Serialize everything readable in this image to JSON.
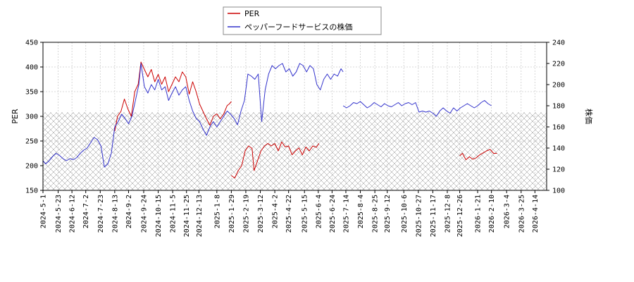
{
  "chart_data": {
    "type": "line",
    "title": "",
    "legend": {
      "placement": "top-center",
      "entries": [
        {
          "label": "PER",
          "color": "#cc0000"
        },
        {
          "label": "ペッパーフードサービスの株価",
          "color": "#3333cc"
        }
      ]
    },
    "left_axis": {
      "label": "PER",
      "range": [
        150,
        450
      ],
      "ticks": [
        150,
        200,
        250,
        300,
        350,
        400,
        450
      ]
    },
    "right_axis": {
      "label": "株価",
      "range": [
        100,
        240
      ],
      "ticks": [
        100,
        120,
        140,
        160,
        180,
        200,
        220,
        240
      ]
    },
    "x_axis": {
      "range": [
        "2024-05-01",
        "2026-05-01"
      ],
      "ticks": [
        "2024-5-1",
        "2024-5-23",
        "2024-6-12",
        "2024-7-2",
        "2024-7-23",
        "2024-8-13",
        "2024-9-2",
        "2024-9-24",
        "2024-10-15",
        "2024-11-5",
        "2024-11-25",
        "2024-12-13",
        "2025-1-8",
        "2025-1-29",
        "2025-2-19",
        "2025-3-12",
        "2025-4-2",
        "2025-4-22",
        "2025-5-15",
        "2025-6-4",
        "2025-6-24",
        "2025-7-14",
        "2025-8-4",
        "2025-8-25",
        "2025-9-12",
        "2025-10-6",
        "2025-10-27",
        "2025-11-17",
        "2025-12-8",
        "2025-12-26",
        "2026-1-21",
        "2026-2-10",
        "2026-3-4",
        "2026-3-25",
        "2026-4-14"
      ]
    },
    "grid": true,
    "hatched_band": {
      "axis": "left",
      "from": 150,
      "to": 308
    },
    "series": [
      {
        "name": "PER",
        "axis": "left",
        "color": "#cc0000",
        "segments": [
          [
            [
              "2024-08-13",
              270
            ],
            [
              "2024-08-17",
              300
            ],
            [
              "2024-08-22",
              310
            ],
            [
              "2024-08-27",
              335
            ],
            [
              "2024-09-01",
              315
            ],
            [
              "2024-09-06",
              300
            ],
            [
              "2024-09-11",
              350
            ],
            [
              "2024-09-16",
              365
            ],
            [
              "2024-09-20",
              410
            ],
            [
              "2024-09-25",
              395
            ],
            [
              "2024-09-30",
              380
            ],
            [
              "2024-10-05",
              395
            ],
            [
              "2024-10-10",
              370
            ],
            [
              "2024-10-15",
              385
            ],
            [
              "2024-10-20",
              365
            ],
            [
              "2024-10-25",
              380
            ],
            [
              "2024-10-30",
              350
            ],
            [
              "2024-11-04",
              365
            ],
            [
              "2024-11-09",
              380
            ],
            [
              "2024-11-14",
              370
            ],
            [
              "2024-11-19",
              390
            ],
            [
              "2024-11-24",
              380
            ],
            [
              "2024-11-29",
              345
            ],
            [
              "2024-12-04",
              370
            ],
            [
              "2024-12-09",
              350
            ],
            [
              "2024-12-14",
              325
            ],
            [
              "2024-12-19",
              310
            ],
            [
              "2024-12-24",
              295
            ],
            [
              "2024-12-29",
              282
            ],
            [
              "2025-01-03",
              300
            ],
            [
              "2025-01-08",
              305
            ],
            [
              "2025-01-13",
              295
            ],
            [
              "2025-01-18",
              305
            ],
            [
              "2025-01-23",
              322
            ],
            [
              "2025-01-26",
              325
            ],
            [
              "2025-01-29",
              330
            ]
          ],
          [
            [
              "2025-01-29",
              180
            ],
            [
              "2025-02-03",
              175
            ],
            [
              "2025-02-08",
              190
            ],
            [
              "2025-02-13",
              200
            ],
            [
              "2025-02-18",
              230
            ],
            [
              "2025-02-23",
              240
            ],
            [
              "2025-02-28",
              235
            ],
            [
              "2025-03-03",
              190
            ],
            [
              "2025-03-08",
              210
            ],
            [
              "2025-03-13",
              230
            ],
            [
              "2025-03-18",
              240
            ],
            [
              "2025-03-23",
              245
            ],
            [
              "2025-03-28",
              240
            ],
            [
              "2025-04-02",
              245
            ],
            [
              "2025-04-07",
              230
            ],
            [
              "2025-04-12",
              248
            ],
            [
              "2025-04-17",
              238
            ],
            [
              "2025-04-22",
              240
            ],
            [
              "2025-04-27",
              222
            ],
            [
              "2025-05-02",
              230
            ],
            [
              "2025-05-07",
              236
            ],
            [
              "2025-05-12",
              222
            ],
            [
              "2025-05-17",
              238
            ],
            [
              "2025-05-22",
              230
            ],
            [
              "2025-05-27",
              240
            ],
            [
              "2025-06-01",
              237
            ],
            [
              "2025-06-05",
              245
            ]
          ],
          [
            [
              "2025-12-26",
              220
            ],
            [
              "2025-12-30",
              225
            ],
            [
              "2026-01-04",
              212
            ],
            [
              "2026-01-09",
              218
            ],
            [
              "2026-01-14",
              213
            ],
            [
              "2026-01-19",
              216
            ],
            [
              "2026-01-24",
              222
            ],
            [
              "2026-01-29",
              226
            ],
            [
              "2026-02-03",
              230
            ],
            [
              "2026-02-08",
              233
            ],
            [
              "2026-02-13",
              225
            ],
            [
              "2026-02-18",
              225
            ]
          ]
        ]
      },
      {
        "name": "ペッパーフードサービスの株価",
        "axis": "right",
        "color": "#3333cc",
        "segments": [
          [
            [
              "2024-05-01",
              128
            ],
            [
              "2024-05-05",
              125
            ],
            [
              "2024-05-10",
              128
            ],
            [
              "2024-05-15",
              132
            ],
            [
              "2024-05-20",
              135
            ],
            [
              "2024-05-25",
              133
            ],
            [
              "2024-05-30",
              130
            ],
            [
              "2024-06-04",
              128
            ],
            [
              "2024-06-09",
              130
            ],
            [
              "2024-06-14",
              129
            ],
            [
              "2024-06-19",
              131
            ],
            [
              "2024-06-24",
              135
            ],
            [
              "2024-06-29",
              138
            ],
            [
              "2024-07-04",
              140
            ],
            [
              "2024-07-09",
              145
            ],
            [
              "2024-07-14",
              150
            ],
            [
              "2024-07-19",
              148
            ],
            [
              "2024-07-24",
              142
            ],
            [
              "2024-07-29",
              122
            ],
            [
              "2024-08-03",
              125
            ],
            [
              "2024-08-08",
              135
            ],
            [
              "2024-08-13",
              160
            ],
            [
              "2024-08-18",
              165
            ],
            [
              "2024-08-23",
              172
            ],
            [
              "2024-08-28",
              168
            ],
            [
              "2024-09-02",
              163
            ],
            [
              "2024-09-07",
              170
            ],
            [
              "2024-09-12",
              185
            ],
            [
              "2024-09-17",
              200
            ],
            [
              "2024-09-20",
              220
            ],
            [
              "2024-09-25",
              198
            ],
            [
              "2024-09-30",
              192
            ],
            [
              "2024-10-05",
              200
            ],
            [
              "2024-10-10",
              195
            ],
            [
              "2024-10-15",
              205
            ],
            [
              "2024-10-20",
              195
            ],
            [
              "2024-10-25",
              198
            ],
            [
              "2024-10-30",
              185
            ],
            [
              "2024-11-04",
              192
            ],
            [
              "2024-11-09",
              198
            ],
            [
              "2024-11-14",
              190
            ],
            [
              "2024-11-19",
              195
            ],
            [
              "2024-11-24",
              198
            ],
            [
              "2024-11-29",
              185
            ],
            [
              "2024-12-04",
              175
            ],
            [
              "2024-12-09",
              168
            ],
            [
              "2024-12-14",
              165
            ],
            [
              "2024-12-19",
              158
            ],
            [
              "2024-12-24",
              152
            ],
            [
              "2024-12-29",
              160
            ],
            [
              "2025-01-03",
              165
            ],
            [
              "2025-01-08",
              160
            ],
            [
              "2025-01-13",
              165
            ],
            [
              "2025-01-18",
              170
            ],
            [
              "2025-01-23",
              175
            ],
            [
              "2025-01-28",
              172
            ],
            [
              "2025-02-02",
              168
            ],
            [
              "2025-02-07",
              162
            ],
            [
              "2025-02-12",
              175
            ],
            [
              "2025-02-17",
              185
            ],
            [
              "2025-02-22",
              210
            ],
            [
              "2025-02-27",
              208
            ],
            [
              "2025-03-04",
              205
            ],
            [
              "2025-03-09",
              210
            ],
            [
              "2025-03-14",
              165
            ],
            [
              "2025-03-19",
              195
            ],
            [
              "2025-03-24",
              210
            ],
            [
              "2025-03-29",
              218
            ],
            [
              "2025-04-03",
              215
            ],
            [
              "2025-04-08",
              218
            ],
            [
              "2025-04-13",
              220
            ],
            [
              "2025-04-18",
              212
            ],
            [
              "2025-04-23",
              215
            ],
            [
              "2025-04-28",
              208
            ],
            [
              "2025-05-03",
              212
            ],
            [
              "2025-05-08",
              220
            ],
            [
              "2025-05-13",
              218
            ],
            [
              "2025-05-18",
              212
            ],
            [
              "2025-05-23",
              218
            ],
            [
              "2025-05-28",
              215
            ],
            [
              "2025-06-02",
              200
            ],
            [
              "2025-06-07",
              195
            ],
            [
              "2025-06-12",
              205
            ],
            [
              "2025-06-17",
              210
            ],
            [
              "2025-06-22",
              205
            ],
            [
              "2025-06-27",
              210
            ],
            [
              "2025-07-02",
              208
            ],
            [
              "2025-07-07",
              215
            ],
            [
              "2025-07-10",
              212
            ]
          ],
          [
            [
              "2025-07-10",
              180
            ],
            [
              "2025-07-15",
              178
            ],
            [
              "2025-07-20",
              180
            ],
            [
              "2025-07-25",
              183
            ],
            [
              "2025-07-30",
              182
            ],
            [
              "2025-08-04",
              184
            ],
            [
              "2025-08-09",
              181
            ],
            [
              "2025-08-14",
              178
            ],
            [
              "2025-08-19",
              180
            ],
            [
              "2025-08-24",
              183
            ],
            [
              "2025-08-29",
              181
            ],
            [
              "2025-09-03",
              179
            ],
            [
              "2025-09-08",
              182
            ],
            [
              "2025-09-13",
              180
            ],
            [
              "2025-09-18",
              179
            ],
            [
              "2025-09-23",
              181
            ],
            [
              "2025-09-28",
              183
            ],
            [
              "2025-10-03",
              180
            ],
            [
              "2025-10-08",
              182
            ],
            [
              "2025-10-13",
              183
            ],
            [
              "2025-10-18",
              181
            ],
            [
              "2025-10-23",
              183
            ],
            [
              "2025-10-28",
              174
            ],
            [
              "2025-11-02",
              175
            ],
            [
              "2025-11-07",
              174
            ],
            [
              "2025-11-12",
              175
            ],
            [
              "2025-11-17",
              173
            ],
            [
              "2025-11-22",
              170
            ],
            [
              "2025-11-27",
              175
            ],
            [
              "2025-12-02",
              178
            ],
            [
              "2025-12-07",
              175
            ],
            [
              "2025-12-12",
              173
            ],
            [
              "2025-12-17",
              178
            ],
            [
              "2025-12-22",
              175
            ],
            [
              "2025-12-27",
              178
            ],
            [
              "2026-01-01",
              180
            ],
            [
              "2026-01-06",
              182
            ],
            [
              "2026-01-11",
              180
            ],
            [
              "2026-01-16",
              178
            ],
            [
              "2026-01-21",
              180
            ],
            [
              "2026-01-26",
              183
            ],
            [
              "2026-01-31",
              185
            ],
            [
              "2026-02-05",
              182
            ],
            [
              "2026-02-10",
              180
            ]
          ]
        ]
      }
    ]
  }
}
